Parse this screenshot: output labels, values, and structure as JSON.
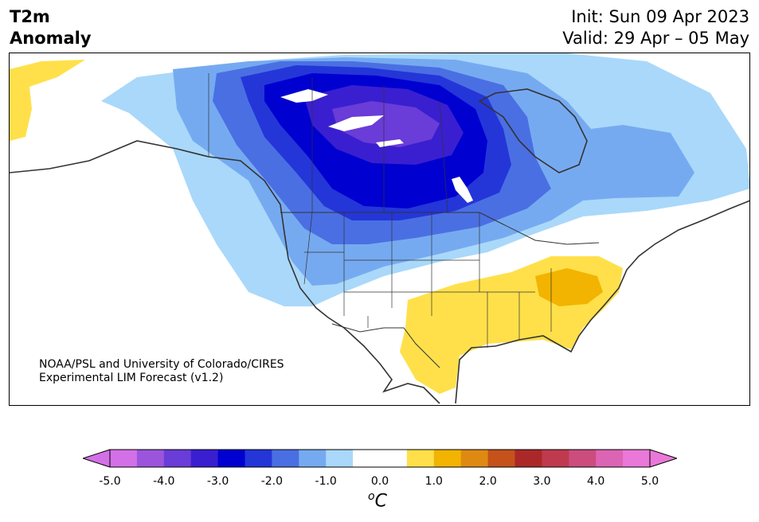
{
  "title": {
    "line1": "T2m",
    "line2": "Anomaly"
  },
  "dates": {
    "init": "Init: Sun 09 Apr 2023",
    "valid": "Valid: 29 Apr – 05 May"
  },
  "credit": {
    "line1": "NOAA/PSL and University of Colorado/CIRES",
    "line2": "Experimental LIM Forecast (v1.2)"
  },
  "colorbar": {
    "unit_super": "o",
    "unit_main": "C",
    "tick_labels": [
      "-5.0",
      "-4.0",
      "-3.0",
      "-2.0",
      "-1.0",
      "0.0",
      "1.0",
      "2.0",
      "3.0",
      "4.0",
      "5.0"
    ],
    "colors": [
      "#d370e8",
      "#9b55dc",
      "#6a3cd8",
      "#3a1fd0",
      "#0000d0",
      "#2436d8",
      "#4a6fe3",
      "#76aaf0",
      "#a9d8fa",
      "#ffffff",
      "#ffffff",
      "#ffe04a",
      "#f2b400",
      "#de8a12",
      "#c4521a",
      "#ac2828",
      "#c03a4e",
      "#cc4c7e",
      "#dc64b4",
      "#ea78d8"
    ],
    "under_color": "#d370e8",
    "over_color": "#ea78d8"
  },
  "anomaly_colors": {
    "cold_1": "#a9d8fa",
    "cold_2": "#76aaf0",
    "cold_3": "#4a6fe3",
    "cold_4": "#2436d8",
    "cold_5": "#0000d0",
    "cold_6": "#3a1fd0",
    "cold_7": "#6a3cd8",
    "warm_1": "#ffe04a",
    "warm_2": "#f2b400"
  }
}
